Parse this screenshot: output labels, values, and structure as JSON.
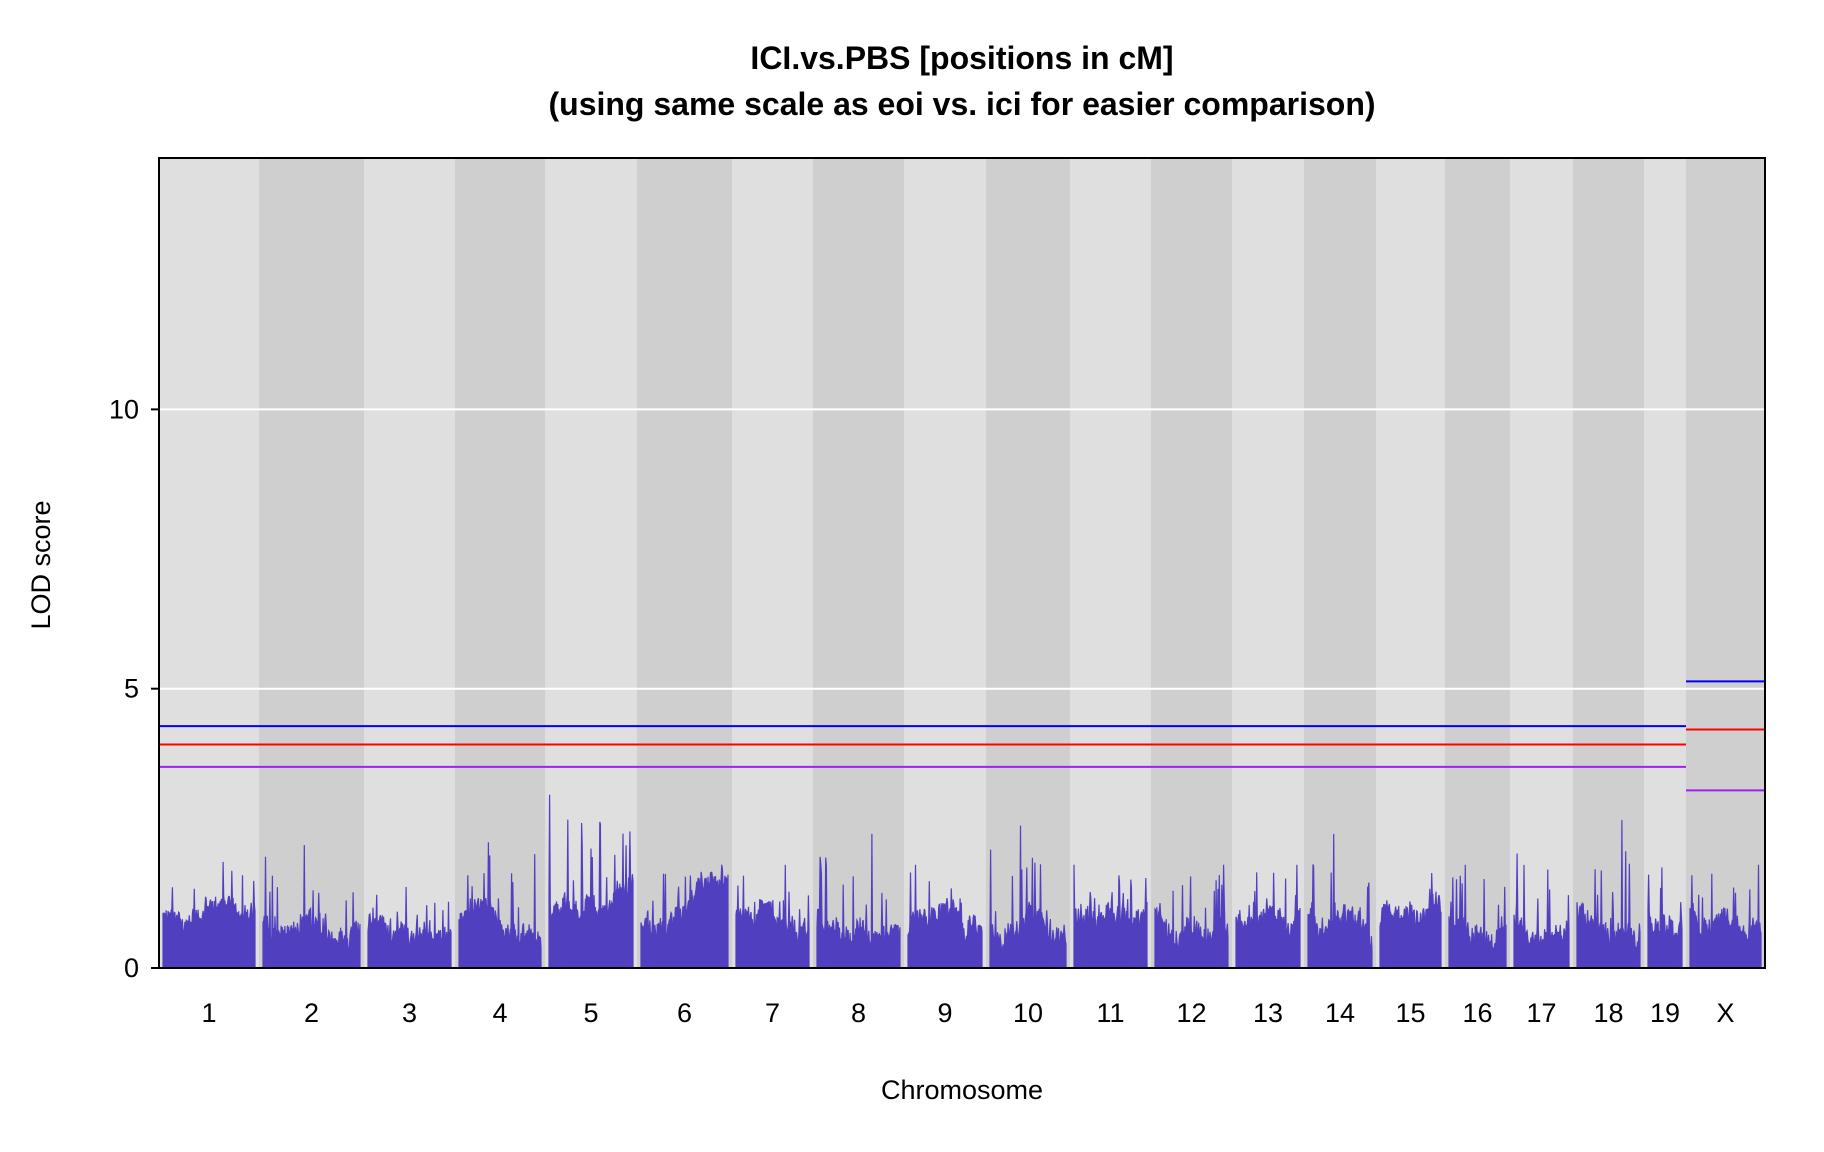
{
  "chart_data": {
    "type": "line",
    "title_line1": "ICI.vs.PBS [positions in cM]",
    "title_line2": "(using same scale as eoi  vs. ici for easier comparison)",
    "xlabel": "Chromosome",
    "ylabel": "LOD score",
    "ylim": [
      0,
      14.5
    ],
    "y_ticks": [
      0,
      5,
      10
    ],
    "y_tick_labels": [
      "0",
      "5",
      "10"
    ],
    "grid_lines_y": [
      5,
      10
    ],
    "chromosomes": [
      {
        "label": "1",
        "peak": 1.9
      },
      {
        "label": "2",
        "peak": 2.2
      },
      {
        "label": "3",
        "peak": 1.45
      },
      {
        "label": "4",
        "peak": 2.25
      },
      {
        "label": "5",
        "peak": 3.1
      },
      {
        "label": "6",
        "peak": 1.85
      },
      {
        "label": "7",
        "peak": 1.85
      },
      {
        "label": "8",
        "peak": 2.4
      },
      {
        "label": "9",
        "peak": 1.85
      },
      {
        "label": "10",
        "peak": 2.55
      },
      {
        "label": "11",
        "peak": 1.85
      },
      {
        "label": "12",
        "peak": 1.85
      },
      {
        "label": "13",
        "peak": 1.85
      },
      {
        "label": "14",
        "peak": 2.4
      },
      {
        "label": "15",
        "peak": 1.7
      },
      {
        "label": "16",
        "peak": 1.85
      },
      {
        "label": "17",
        "peak": 2.05
      },
      {
        "label": "18",
        "peak": 2.65
      },
      {
        "label": "19",
        "peak": 1.8
      },
      {
        "label": "X",
        "peak": 1.85
      }
    ],
    "thresholds_autosomes": [
      {
        "name": "blue threshold",
        "value": 4.33,
        "color": "#0000ff"
      },
      {
        "name": "red threshold",
        "value": 4.0,
        "color": "#ff0000"
      },
      {
        "name": "purple threshold",
        "value": 3.6,
        "color": "#a020f0"
      }
    ],
    "thresholds_x": [
      {
        "name": "blue threshold X",
        "value": 5.13,
        "color": "#0000ff"
      },
      {
        "name": "red threshold X",
        "value": 4.27,
        "color": "#ff0000"
      },
      {
        "name": "purple threshold X",
        "value": 3.18,
        "color": "#a020f0"
      }
    ],
    "line_color": "#5040c0",
    "band_colors": [
      "#dfdfdf",
      "#cfcfcf"
    ]
  }
}
